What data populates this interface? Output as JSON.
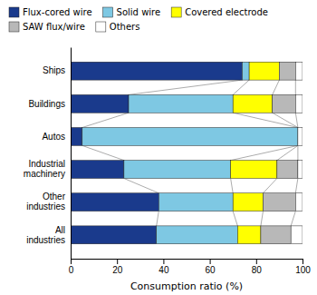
{
  "chart_data": {
    "type": "bar",
    "orientation": "horizontal",
    "stacked": true,
    "categories": [
      "Ships",
      "Buildings",
      "Autos",
      "Industrial\nmachinery",
      "Other\nindustries",
      "All\nindustries"
    ],
    "series": [
      {
        "name": "Flux-cored wire",
        "color": "#1a3a8c",
        "values": [
          74,
          25,
          5,
          23,
          38,
          37
        ]
      },
      {
        "name": "Solid wire",
        "color": "#7ec8e3",
        "values": [
          3,
          45,
          93,
          46,
          32,
          35
        ]
      },
      {
        "name": "Covered electrode",
        "color": "#ffff00",
        "values": [
          13,
          17,
          0,
          20,
          13,
          10
        ]
      },
      {
        "name": "SAW flux/wire",
        "color": "#b8b8b8",
        "values": [
          7,
          10,
          0,
          9,
          14,
          13
        ]
      },
      {
        "name": "Others",
        "color": "#ffffff",
        "values": [
          3,
          3,
          2,
          2,
          3,
          5
        ]
      }
    ],
    "xlabel": "Consumption ratio (%)",
    "xlim": [
      0,
      100
    ],
    "xticks": [
      0,
      20,
      40,
      60,
      80,
      100
    ],
    "grid": false,
    "legend": "top"
  }
}
